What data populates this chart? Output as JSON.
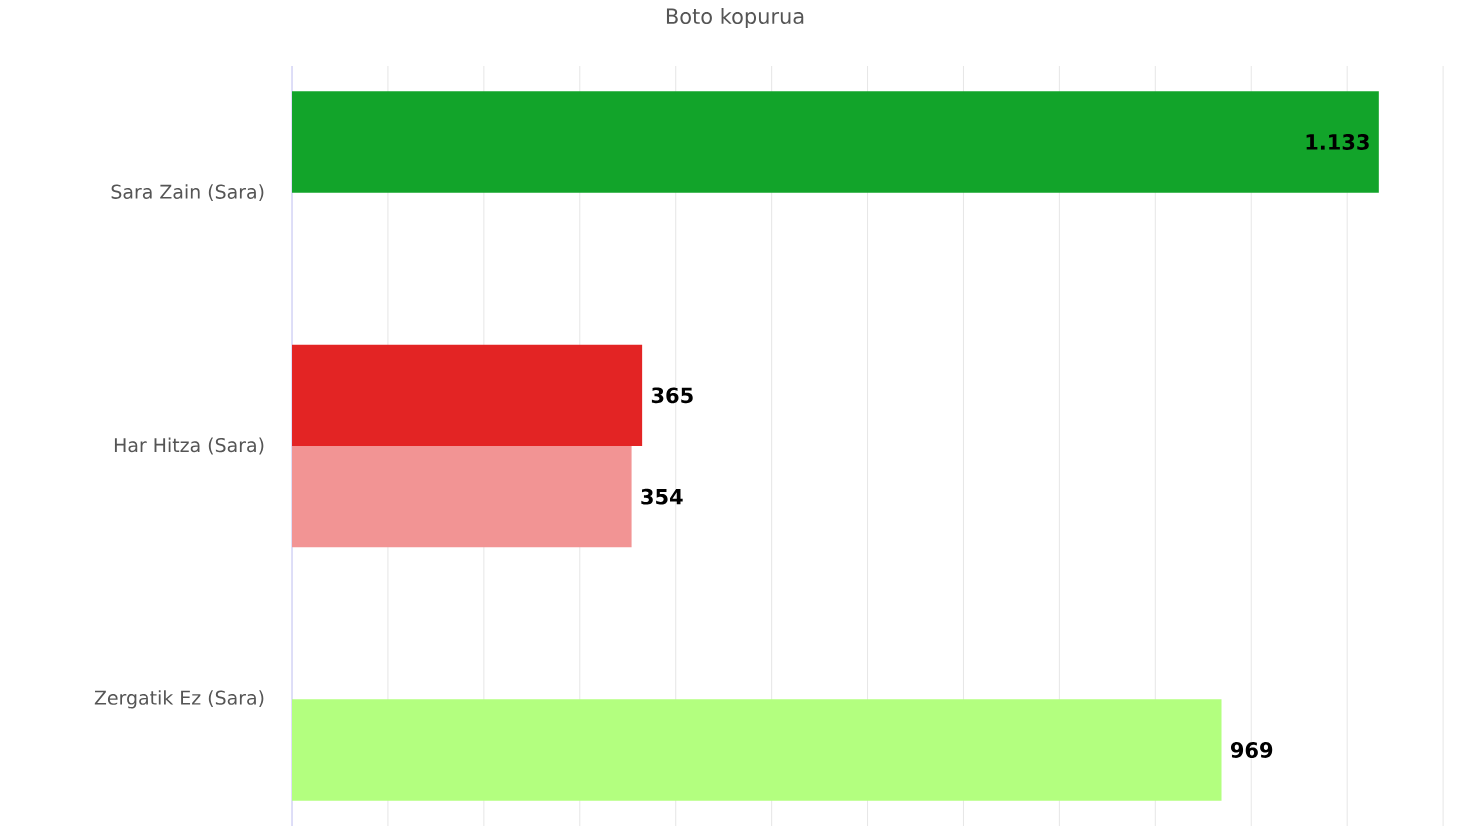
{
  "chart_data": {
    "type": "bar",
    "orientation": "horizontal",
    "title": "Boto kopurua",
    "categories": [
      "Sara Zain (Sara)",
      "Har Hitza (Sara)",
      "Zergatik Ez (Sara)"
    ],
    "series": [
      {
        "colors": [
          "#12a42a",
          "#e32424",
          "#e32424"
        ],
        "values": [
          1133,
          365,
          null
        ],
        "value_labels": [
          "1.133",
          "365",
          null
        ]
      },
      {
        "colors": [
          "#f29494",
          "#f29494",
          "#b3ff7f"
        ],
        "values": [
          null,
          354,
          969
        ],
        "value_labels": [
          null,
          "354",
          "969"
        ]
      }
    ],
    "tick_labels": "y",
    "grid": "x"
  }
}
